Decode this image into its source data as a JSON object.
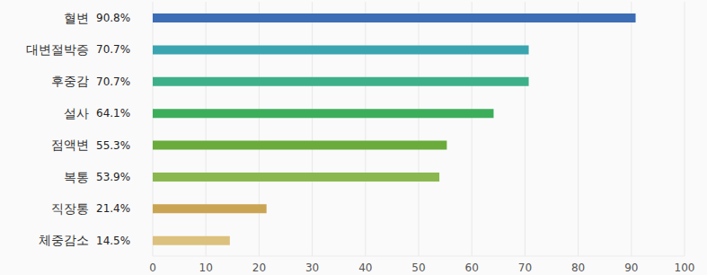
{
  "chart_data": {
    "type": "bar",
    "orientation": "horizontal",
    "categories": [
      "혈변",
      "대변절박증",
      "후중감",
      "설사",
      "점액변",
      "복통",
      "직장통",
      "체중감소"
    ],
    "values": [
      90.8,
      70.7,
      70.7,
      64.1,
      55.3,
      53.9,
      21.4,
      14.5
    ],
    "value_labels": [
      "90.8%",
      "70.7%",
      "70.7%",
      "64.1%",
      "55.3%",
      "53.9%",
      "21.4%",
      "14.5%"
    ],
    "colors": [
      "#3d6db5",
      "#3aa5b0",
      "#3db08a",
      "#3cae5a",
      "#6aab3c",
      "#8ab84e",
      "#c9a553",
      "#dcc07e"
    ],
    "xlim": [
      0,
      100
    ],
    "xticks": [
      0,
      10,
      20,
      30,
      40,
      50,
      60,
      70,
      80,
      90,
      100
    ],
    "grid": true,
    "data_labels": true
  }
}
